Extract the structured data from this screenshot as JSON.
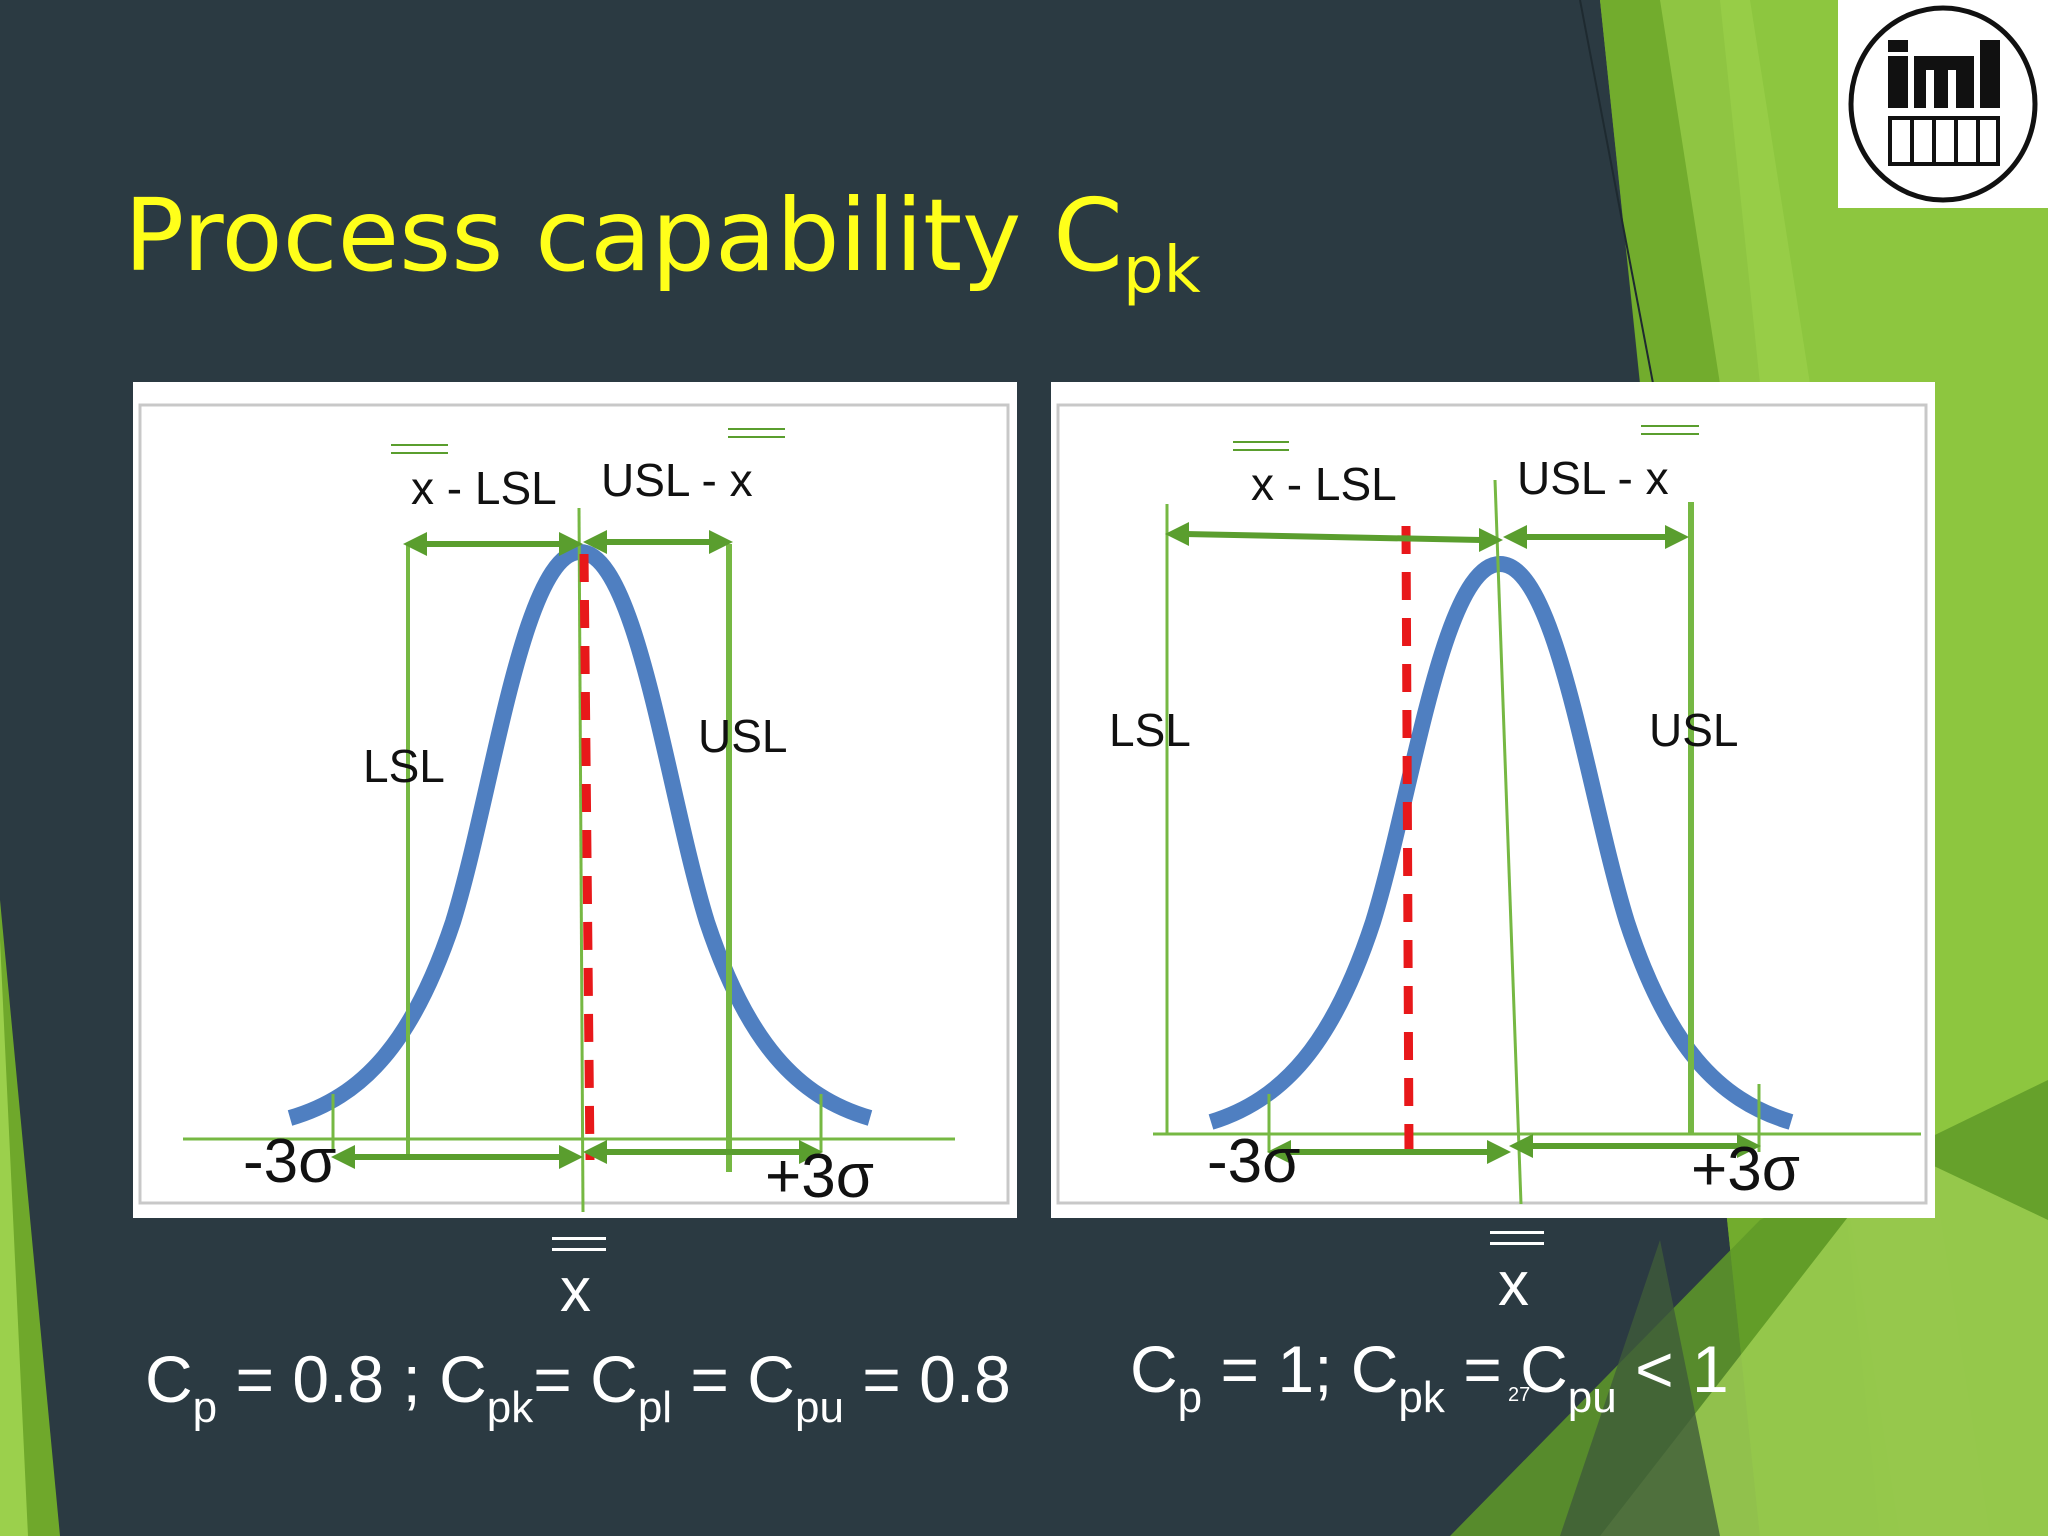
{
  "title": {
    "main": "Process capability C",
    "sub": "pk"
  },
  "colors": {
    "background": "#2b3a42",
    "title": "#ffff1a",
    "curve": "#4f7fc1",
    "spec_lines": "#76b843",
    "arrows": "#5a9e2e",
    "center_dashed": "#e8181a",
    "accent_green": "#7ab52e"
  },
  "logo": {
    "text_top": "im1",
    "text_bottom": "DDDaD",
    "icon": "institute-logo"
  },
  "left_diagram": {
    "label_mean_minus_lsl": "x - LSL",
    "label_usl_minus_mean": "USL - x",
    "label_lsl": "LSL",
    "label_usl": "USL",
    "label_minus_3sigma": "-3σ",
    "label_plus_3sigma": "+3σ",
    "mean_symbol": "x"
  },
  "right_diagram": {
    "label_mean_minus_lsl": "x - LSL",
    "label_usl_minus_mean": "USL - x",
    "label_lsl": "LSL",
    "label_usl": "USL",
    "label_minus_3sigma": "-3σ",
    "label_plus_3sigma": "+3σ",
    "mean_symbol": "x"
  },
  "formula_left": {
    "p1": "C",
    "s1": "p",
    "p2": " = 0.8 ; C",
    "s2": "pk",
    "p3": "= C",
    "s3": "pl",
    "p4": " = C",
    "s4": "pu",
    "p5": " = 0.8"
  },
  "formula_right": {
    "p1": "C",
    "s1": "p",
    "p2": " = 1; C",
    "s2": "pk",
    "p3": " = C",
    "s3": "pu",
    "p4": "  < 1"
  },
  "slide_number": "27"
}
